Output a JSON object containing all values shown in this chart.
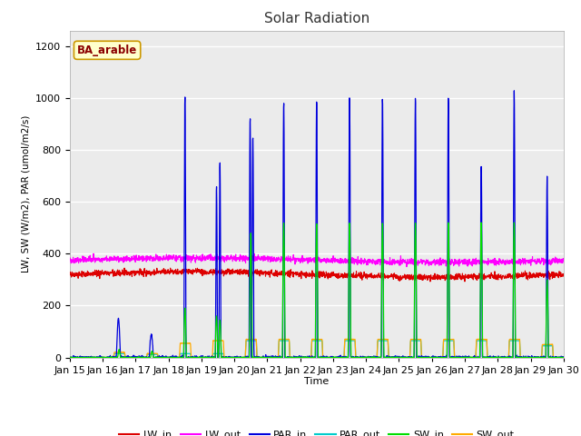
{
  "title": "Solar Radiation",
  "ylabel": "LW, SW (W/m2), PAR (umol/m2/s)",
  "xlabel": "Time",
  "annotation": "BA_arable",
  "n_days": 15,
  "ylim": [
    0,
    1260
  ],
  "yticks": [
    0,
    200,
    400,
    600,
    800,
    1000,
    1200
  ],
  "background_color": "#e8e8e8",
  "plot_bg_color": "#ebebeb",
  "series_colors": {
    "LW_in": "#dd0000",
    "LW_out": "#ff00ff",
    "PAR_in": "#0000dd",
    "PAR_out": "#00cccc",
    "SW_in": "#00dd00",
    "SW_out": "#ffaa00"
  },
  "day_par_peaks": [
    0,
    150,
    90,
    1010,
    660,
    930,
    990,
    1000,
    1010,
    1000,
    1010,
    1010,
    740,
    1030,
    690
  ],
  "day_par_peaks2": [
    0,
    0,
    0,
    0,
    750,
    860,
    0,
    0,
    0,
    0,
    0,
    0,
    0,
    0,
    0
  ],
  "day_sw_peaks": [
    0,
    30,
    25,
    190,
    160,
    480,
    520,
    520,
    520,
    520,
    520,
    520,
    520,
    520,
    300
  ],
  "day_par_out_flat": [
    0,
    15,
    12,
    15,
    15,
    65,
    65,
    65,
    65,
    65,
    65,
    65,
    65,
    65,
    45
  ],
  "day_sw_out_flat": [
    0,
    20,
    15,
    55,
    65,
    70,
    70,
    70,
    70,
    70,
    70,
    70,
    70,
    70,
    50
  ],
  "lw_in_base": 320,
  "lw_out_base": 375
}
